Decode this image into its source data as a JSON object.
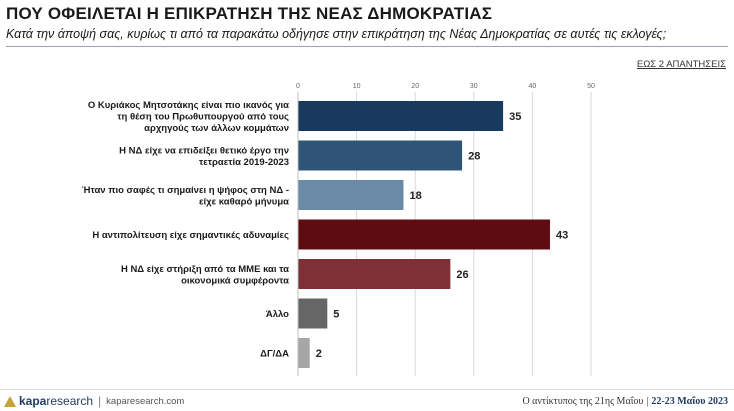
{
  "header": {
    "title": "ΠΟΥ ΟΦΕΙΛΕΤΑΙ Η ΕΠΙΚΡΑΤΗΣΗ ΤΗΣ ΝΕΑΣ ΔΗΜΟΚΡΑΤΙΑΣ",
    "subtitle": "Κατά την άποψή σας, κυρίως τι από τα παρακάτω οδήγησε στην επικράτηση της Νέας Δημοκρατίας σε αυτές τις εκλογές;",
    "note": "ΕΩΣ 2 ΑΠΑΝΤΗΣΕΙΣ"
  },
  "chart_data": {
    "type": "bar",
    "orientation": "horizontal",
    "xlim": [
      0,
      50
    ],
    "ticks": [
      0,
      10,
      20,
      30,
      40,
      50
    ],
    "grid": true,
    "categories": [
      [
        "Ο Κυριάκος Μητσοτάκης είναι πιο ικανός για",
        "τη θέση του Πρωθυπουργού από τους",
        "αρχηγούς των άλλων κομμάτων"
      ],
      [
        "Η ΝΔ είχε να επιδείξει θετικό έργο την",
        "τετραετία 2019-2023"
      ],
      [
        "Ήταν πιο σαφές τι σημαίνει η ψήφος στη ΝΔ -",
        "είχε καθαρό μήνυμα"
      ],
      [
        "Η αντιπολίτευση είχε σημαντικές αδυναμίες"
      ],
      [
        "Η ΝΔ είχε στήριξη από τα ΜΜΕ και τα",
        "οικονομικά συμφέροντα"
      ],
      [
        "Άλλο"
      ],
      [
        "ΔΓ/ΔΑ"
      ]
    ],
    "values": [
      35,
      28,
      18,
      43,
      26,
      5,
      2
    ],
    "colors": [
      "#173a5e",
      "#2f5478",
      "#6b8aa6",
      "#5e0b12",
      "#7e3036",
      "#666666",
      "#a6a6a6"
    ]
  },
  "footer": {
    "logo_bold": "kapa",
    "logo_rest": "research",
    "logo_sep": "|",
    "url": "kaparesearch.com",
    "right_text": "Ο αντίκτυπος της 21ης Μαΐου",
    "right_sep": "|",
    "right_date": "22-23 Μαΐου 2023"
  }
}
